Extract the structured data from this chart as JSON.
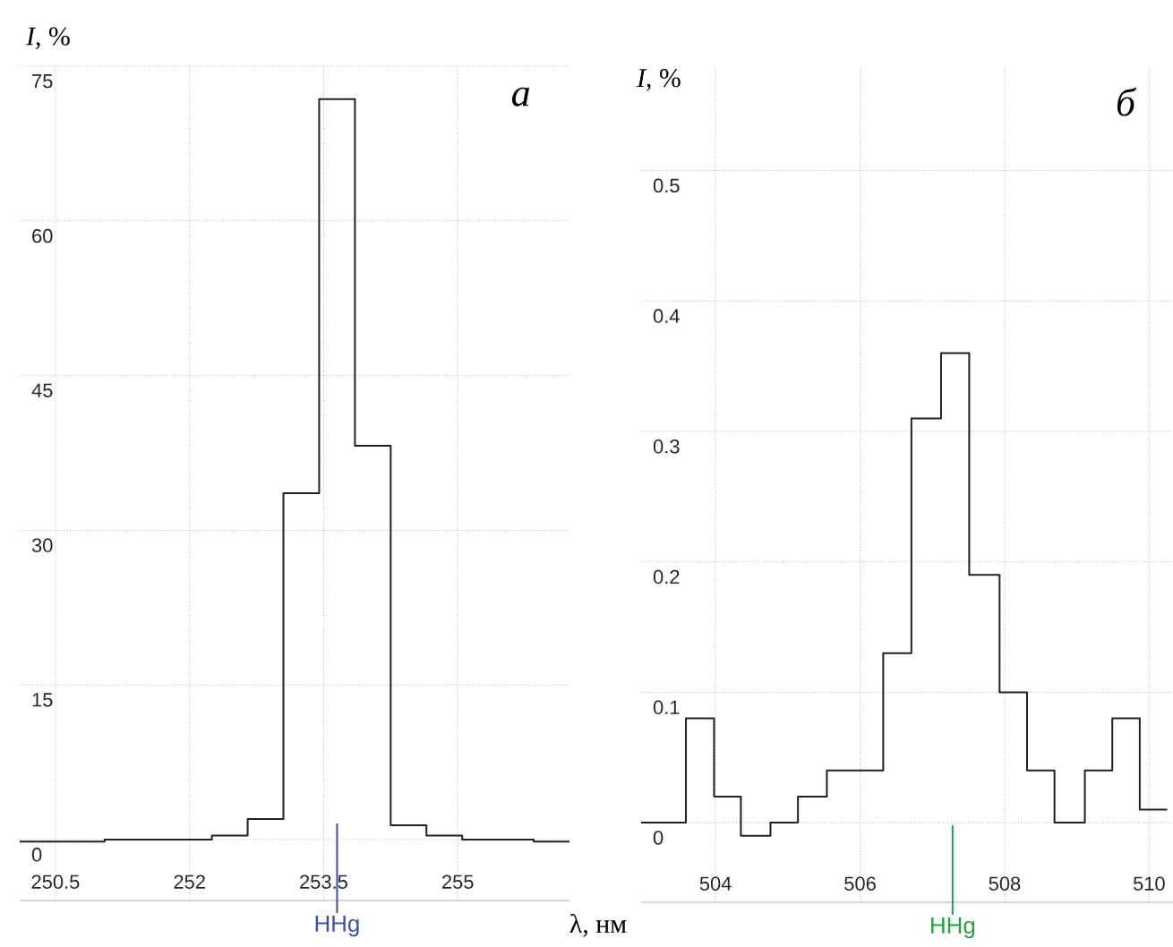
{
  "chart_data": [
    {
      "type": "histogram",
      "xlabel": "λ, нм",
      "ylabel": "*I*, %",
      "annotations": [
        "а"
      ],
      "bins": [
        250.1,
        251.05,
        252.25,
        252.65,
        253.05,
        253.45,
        253.85,
        254.25,
        254.65,
        255.05,
        255.85,
        256.25
      ],
      "values": [
        -0.2,
        0,
        0.4,
        2,
        33.6,
        71.8,
        38.2,
        1.4,
        0.4,
        0,
        -0.2
      ],
      "color": "#202020",
      "xlim": [
        250.1,
        256.25
      ],
      "ylim": [
        -5.9,
        75
      ],
      "xticks": [
        250.5,
        252,
        253.5,
        255
      ],
      "yticks": [
        0,
        15,
        30,
        45,
        60,
        75
      ],
      "grid": true,
      "ref_lines": [
        {
          "axis": "x",
          "value": 253.65,
          "label": "HHg",
          "color": "#3a4fb0"
        }
      ]
    },
    {
      "type": "histogram",
      "ylabel": "*I*, %",
      "annotations": [
        "б"
      ],
      "bins": [
        502.97,
        503.59,
        503.98,
        504.35,
        504.76,
        505.14,
        505.54,
        506.32,
        506.71,
        507.12,
        507.51,
        507.93,
        508.31,
        508.69,
        509.11,
        509.49,
        509.87,
        510.25
      ],
      "values": [
        0,
        0.08,
        0.02,
        -0.01,
        0,
        0.02,
        0.04,
        0.13,
        0.31,
        0.36,
        0.19,
        0.1,
        0.04,
        0,
        0.04,
        0.08,
        0.01
      ],
      "color": "#202020",
      "xlim": [
        502.97,
        510.33
      ],
      "ylim": [
        -0.061,
        0.58
      ],
      "xticks": [
        504,
        506,
        508,
        510
      ],
      "yticks": [
        0,
        0.1,
        0.2,
        0.3,
        0.4,
        0.5
      ],
      "grid": true,
      "ref_lines": [
        {
          "axis": "x",
          "value": 507.28,
          "label": "HHg",
          "color": "#22a040"
        }
      ]
    }
  ]
}
